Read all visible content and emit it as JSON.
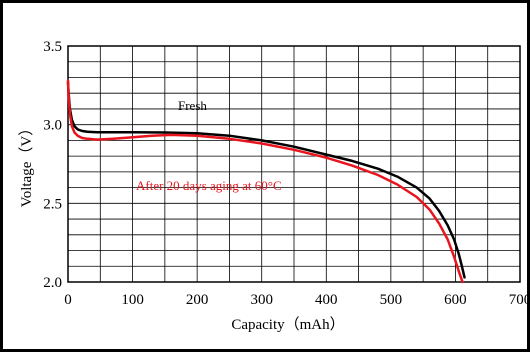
{
  "chart_data": {
    "type": "line",
    "xlabel": "Capacity（mAh）",
    "ylabel": "Voltage（V）",
    "xlim": [
      0,
      700
    ],
    "ylim": [
      2.0,
      3.5
    ],
    "x_ticks": [
      "0",
      "100",
      "200",
      "300",
      "400",
      "500",
      "600",
      "700"
    ],
    "y_ticks": [
      "2.0",
      "2.5",
      "3.0",
      "3.5"
    ],
    "grid": true,
    "annotations": [
      {
        "text": "Fresh",
        "color": "#000000"
      },
      {
        "text": "After 20 days aging at 60°C",
        "color": "#e8141e"
      }
    ],
    "series": [
      {
        "name": "Fresh",
        "color": "#000000",
        "x": [
          0,
          1,
          3,
          6,
          10,
          15,
          22,
          30,
          45,
          70,
          100,
          150,
          200,
          250,
          300,
          350,
          400,
          440,
          480,
          510,
          540,
          560,
          575,
          588,
          598,
          605,
          610,
          614
        ],
        "y": [
          3.27,
          3.2,
          3.1,
          3.03,
          2.99,
          2.97,
          2.96,
          2.955,
          2.952,
          2.952,
          2.952,
          2.95,
          2.945,
          2.93,
          2.9,
          2.86,
          2.81,
          2.77,
          2.72,
          2.67,
          2.6,
          2.53,
          2.45,
          2.36,
          2.27,
          2.18,
          2.1,
          2.03
        ]
      },
      {
        "name": "After 20 days aging at 60°C",
        "color": "#e8141e",
        "x": [
          0,
          1,
          3,
          6,
          10,
          15,
          22,
          30,
          45,
          70,
          100,
          130,
          160,
          200,
          250,
          300,
          350,
          400,
          440,
          480,
          510,
          540,
          560,
          575,
          588,
          598,
          605,
          611
        ],
        "y": [
          3.28,
          3.18,
          3.07,
          2.99,
          2.95,
          2.93,
          2.915,
          2.91,
          2.905,
          2.91,
          2.92,
          2.93,
          2.935,
          2.93,
          2.91,
          2.88,
          2.84,
          2.79,
          2.74,
          2.68,
          2.62,
          2.54,
          2.46,
          2.37,
          2.27,
          2.16,
          2.07,
          2.0
        ]
      }
    ]
  }
}
